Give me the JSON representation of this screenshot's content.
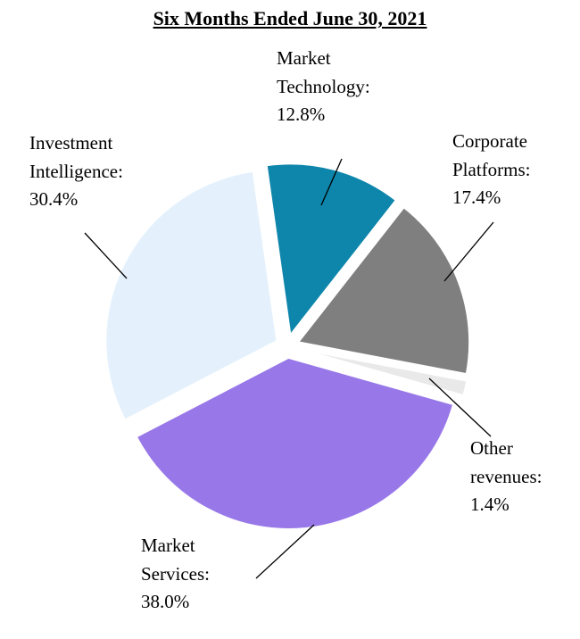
{
  "page": {
    "background": "#ffffff"
  },
  "chart_data": {
    "type": "pie",
    "title": "Six Months Ended June 30, 2021",
    "start_angle": -8,
    "legend_position": "none",
    "exploded": true,
    "slices": [
      {
        "label": "Market Technology",
        "value": 12.8,
        "color": "#0e86ab",
        "label_text": "Market\nTechnology:\n12.8%"
      },
      {
        "label": "Corporate Platforms",
        "value": 17.4,
        "color": "#7f7f7f",
        "label_text": "Corporate\nPlatforms:\n17.4%"
      },
      {
        "label": "Other revenues",
        "value": 1.4,
        "color": "#e9e9e9",
        "label_text": "Other\nrevenues:\n1.4%"
      },
      {
        "label": "Market Services",
        "value": 38.0,
        "color": "#9878e8",
        "label_text": "Market\nServices:\n38.0%"
      },
      {
        "label": "Investment Intelligence",
        "value": 30.4,
        "color": "#e4f1fc",
        "label_text": "Investment\nIntelligence:\n30.4%"
      }
    ]
  }
}
